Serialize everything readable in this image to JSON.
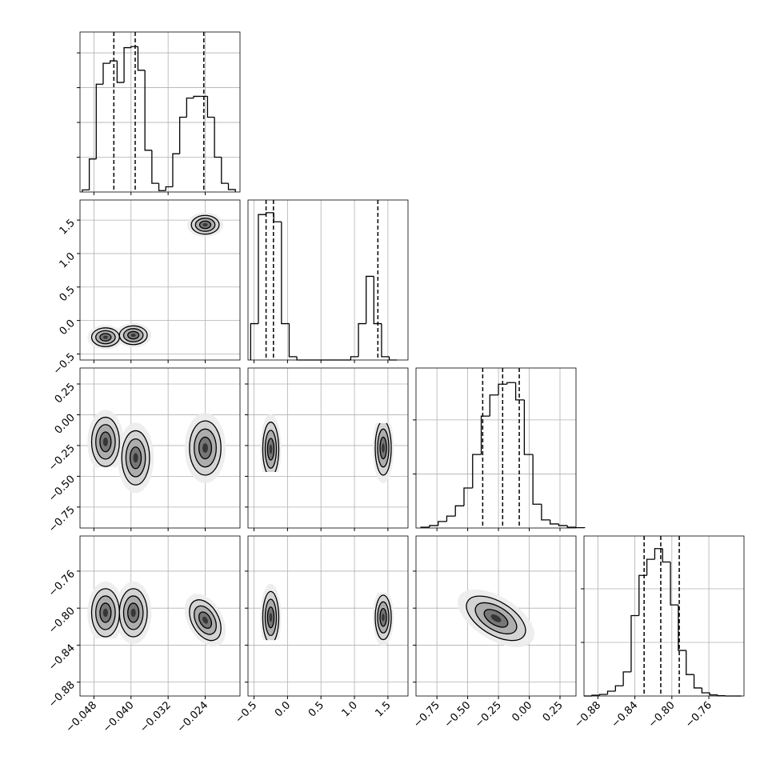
{
  "chart_data": {
    "type": "corner",
    "params": [
      {
        "lim": [
          -0.051,
          -0.0165
        ],
        "ticks": [
          {
            "value": -0.048,
            "label": "−0.048"
          },
          {
            "value": -0.04,
            "label": "−0.040"
          },
          {
            "value": -0.032,
            "label": "−0.032"
          },
          {
            "value": -0.024,
            "label": "−0.024"
          }
        ]
      },
      {
        "lim": [
          -0.59,
          1.8
        ],
        "ticks": [
          {
            "value": -0.5,
            "label": "−0.5"
          },
          {
            "value": 0,
            "label": "0.0"
          },
          {
            "value": 0.5,
            "label": "0.5"
          },
          {
            "value": 1,
            "label": "1.0"
          },
          {
            "value": 1.5,
            "label": "1.5"
          }
        ]
      },
      {
        "lim": [
          -0.92,
          0.38
        ],
        "ticks": [
          {
            "value": -0.75,
            "label": "−0.75"
          },
          {
            "value": -0.5,
            "label": "−0.50"
          },
          {
            "value": -0.25,
            "label": "−0.25"
          },
          {
            "value": 0,
            "label": "0.00"
          },
          {
            "value": 0.25,
            "label": "0.25"
          }
        ]
      },
      {
        "lim": [
          -0.895,
          -0.722
        ],
        "ticks": [
          {
            "value": -0.88,
            "label": "−0.88"
          },
          {
            "value": -0.84,
            "label": "−0.84"
          },
          {
            "value": -0.8,
            "label": "−0.80"
          },
          {
            "value": -0.76,
            "label": "−0.76"
          }
        ]
      }
    ],
    "hists": [
      {
        "bins": [
          -0.0505,
          -0.049,
          -0.0475,
          -0.046,
          -0.0445,
          -0.043,
          -0.0415,
          -0.04,
          -0.0385,
          -0.037,
          -0.0355,
          -0.034,
          -0.0325,
          -0.031,
          -0.0295,
          -0.028,
          -0.0265,
          -0.025,
          -0.0235,
          -0.022,
          -0.0205,
          -0.019,
          -0.0175
        ],
        "counts": [
          60,
          950,
          3100,
          3700,
          3770,
          3150,
          4150,
          4180,
          3500,
          1200,
          250,
          40,
          150,
          1100,
          2150,
          2700,
          2750,
          2750,
          2150,
          1000,
          250,
          70
        ],
        "ylim": [
          0,
          4600
        ],
        "yticks": [
          1000,
          2000,
          3000,
          4000
        ],
        "quantiles": [
          -0.0437,
          -0.0391,
          -0.0243
        ]
      },
      {
        "bins": [
          -0.55,
          -0.435,
          -0.32,
          -0.205,
          -0.09,
          0.025,
          0.14,
          0.255,
          0.37,
          0.485,
          0.6,
          0.715,
          0.83,
          0.945,
          1.06,
          1.175,
          1.29,
          1.405,
          1.52,
          1.635
        ],
        "counts": [
          1000,
          4000,
          4050,
          3800,
          1000,
          90,
          0,
          0,
          0,
          0,
          0,
          0,
          0,
          90,
          1000,
          2300,
          1000,
          90,
          0
        ],
        "ylim": [
          0,
          4400
        ],
        "quantiles": [
          -0.32,
          -0.21,
          1.35
        ]
      },
      {
        "bins": [
          -0.88,
          -0.81,
          -0.74,
          -0.67,
          -0.6,
          -0.53,
          -0.46,
          -0.39,
          -0.32,
          -0.25,
          -0.18,
          -0.11,
          -0.04,
          0.03,
          0.1,
          0.17,
          0.24,
          0.31,
          0.38,
          0.45
        ],
        "counts": [
          15,
          45,
          120,
          220,
          410,
          740,
          1360,
          2070,
          2460,
          2660,
          2690,
          2370,
          1360,
          440,
          150,
          75,
          45,
          15,
          5
        ],
        "ylim": [
          0,
          2960
        ],
        "yticks": [
          1000,
          2000
        ],
        "quantiles": [
          -0.378,
          -0.216,
          -0.081
        ]
      },
      {
        "bins": [
          -0.895,
          -0.8865,
          -0.878,
          -0.8695,
          -0.861,
          -0.8525,
          -0.844,
          -0.8355,
          -0.827,
          -0.8185,
          -0.81,
          -0.8015,
          -0.793,
          -0.7845,
          -0.776,
          -0.7675,
          -0.759,
          -0.7505,
          -0.742,
          -0.7335,
          -0.725
        ],
        "counts": [
          0,
          15,
          30,
          90,
          190,
          450,
          1500,
          2250,
          2550,
          2750,
          2500,
          1700,
          850,
          400,
          150,
          60,
          20,
          5,
          0,
          0
        ],
        "ylim": [
          0,
          2985
        ],
        "yticks": [
          1000,
          2000
        ],
        "quantiles": [
          -0.83,
          -0.812,
          -0.792
        ]
      }
    ],
    "pairs": [
      {
        "row": 1,
        "col": 0,
        "clusters": [
          {
            "x": -0.0455,
            "y": -0.25,
            "sx": 0.0015,
            "sy": 0.07,
            "rho": 0
          },
          {
            "x": -0.0395,
            "y": -0.22,
            "sx": 0.0015,
            "sy": 0.07,
            "rho": 0
          },
          {
            "x": -0.024,
            "y": 1.43,
            "sx": 0.0015,
            "sy": 0.07,
            "rho": 0
          }
        ]
      },
      {
        "row": 2,
        "col": 0,
        "clusters": [
          {
            "x": -0.0455,
            "y": -0.22,
            "sx": 0.0015,
            "sy": 0.1,
            "rho": 0
          },
          {
            "x": -0.039,
            "y": -0.35,
            "sx": 0.0015,
            "sy": 0.11,
            "rho": 0
          },
          {
            "x": -0.024,
            "y": -0.27,
            "sx": 0.0017,
            "sy": 0.11,
            "rho": 0
          }
        ]
      },
      {
        "row": 2,
        "col": 1,
        "clusters": [
          {
            "x": -0.25,
            "y": -0.28,
            "sx": 0.06,
            "sy": 0.11,
            "rho": 0
          },
          {
            "x": 1.43,
            "y": -0.27,
            "sx": 0.06,
            "sy": 0.11,
            "rho": 0
          }
        ]
      },
      {
        "row": 3,
        "col": 0,
        "clusters": [
          {
            "x": -0.0455,
            "y": -0.805,
            "sx": 0.0015,
            "sy": 0.013,
            "rho": 0
          },
          {
            "x": -0.0395,
            "y": -0.805,
            "sx": 0.0015,
            "sy": 0.013,
            "rho": 0
          },
          {
            "x": -0.024,
            "y": -0.813,
            "sx": 0.0017,
            "sy": 0.011,
            "rho": -0.4
          }
        ]
      },
      {
        "row": 3,
        "col": 1,
        "clusters": [
          {
            "x": -0.25,
            "y": -0.81,
            "sx": 0.06,
            "sy": 0.014,
            "rho": 0
          },
          {
            "x": 1.43,
            "y": -0.81,
            "sx": 0.06,
            "sy": 0.012,
            "rho": 0
          }
        ]
      },
      {
        "row": 3,
        "col": 2,
        "clusters": [
          {
            "x": -0.27,
            "y": -0.811,
            "sx": 0.12,
            "sy": 0.012,
            "rho": -0.55
          }
        ]
      }
    ]
  }
}
